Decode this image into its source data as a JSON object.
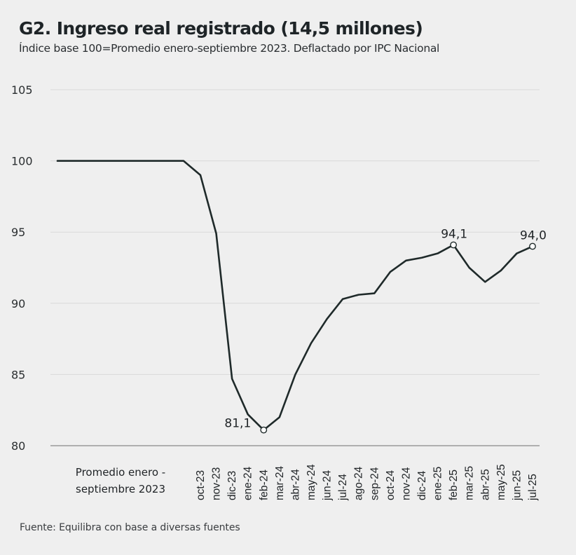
{
  "chart_data": {
    "type": "line",
    "title": "G2. Ingreso real registrado (14,5 millones)",
    "subtitle": "Índice base 100=Promedio enero-septiembre 2023. Deflactado por IPC Nacional",
    "xlabel": "",
    "ylabel": "",
    "ylim": [
      80,
      105
    ],
    "yticks": [
      80,
      85,
      90,
      95,
      100,
      105
    ],
    "ytick_labels": [
      "80",
      "85",
      "90",
      "95",
      "100",
      "105"
    ],
    "grid": "horizontal",
    "legend": "none",
    "base_category": {
      "label_lines": [
        "Promedio enero -",
        "septiembre 2023"
      ],
      "value": 100
    },
    "categories": [
      "oct-23",
      "nov-23",
      "dic-23",
      "ene-24",
      "feb-24",
      "mar-24",
      "abr-24",
      "may-24",
      "jun-24",
      "jul-24",
      "ago-24",
      "sep-24",
      "oct-24",
      "nov-24",
      "dic-24",
      "ene-25",
      "feb-25",
      "mar-25",
      "abr-25",
      "may-25",
      "jun-25",
      "jul-25"
    ],
    "series": [
      {
        "name": "Ingreso real registrado",
        "color": "#1f2a2a",
        "values": [
          99.0,
          94.9,
          84.7,
          82.2,
          81.1,
          82.0,
          85.0,
          87.2,
          88.9,
          90.3,
          90.6,
          90.7,
          92.2,
          93.0,
          93.2,
          93.5,
          94.1,
          92.5,
          91.5,
          92.3,
          93.5,
          94.0
        ]
      }
    ],
    "annotations": [
      {
        "category": "feb-24",
        "value": 81.1,
        "text": "81,1",
        "position": "left"
      },
      {
        "category": "feb-25",
        "value": 94.1,
        "text": "94,1",
        "position": "above"
      },
      {
        "category": "jul-25",
        "value": 94.0,
        "text": "94,0",
        "position": "above"
      }
    ]
  },
  "footer": {
    "source": "Fuente: Equilibra con base a diversas fuentes"
  },
  "colors": {
    "background": "#efefef",
    "line": "#1f2a2a",
    "grid": "#d9d9d9",
    "axis": "#9a9a9a",
    "text": "#1f2326"
  }
}
